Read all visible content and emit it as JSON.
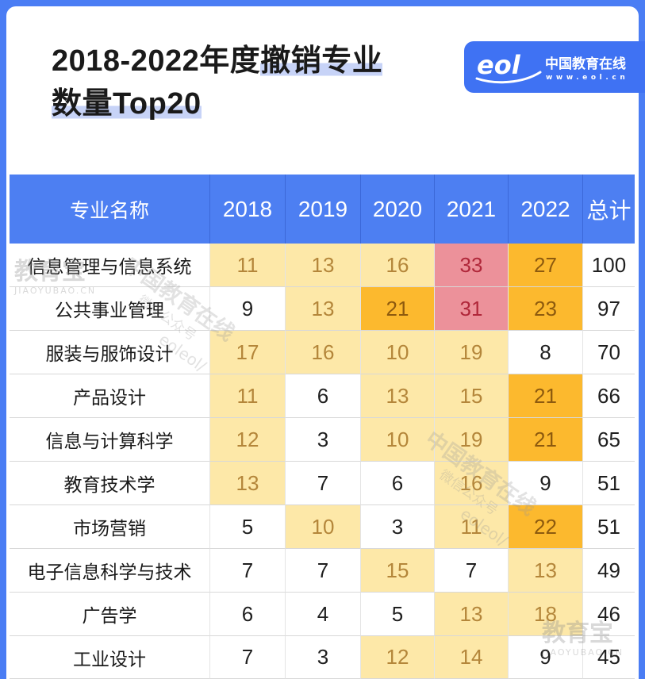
{
  "title": {
    "line1_plain": "2018-2022年度",
    "line1_highlight": "撤销专业",
    "line2_highlight": "数量Top20"
  },
  "logo": {
    "mark": "eol",
    "name": "中国教育在线",
    "url": "www.eol.cn"
  },
  "watermarks": {
    "jyb_cn": "教育宝",
    "jyb_en": "JIAOYUBAO.CN",
    "eol_cn": "中国教育在线",
    "eol_wx": "微信公众号",
    "eol_en": "eoleol/"
  },
  "colors": {
    "frame_blue": "#4a7df4",
    "header_bg": "#4d7ff2",
    "cell_light": "#fde8a8",
    "cell_mid": "#fcb92e",
    "cell_high": "#ec919a",
    "cell_plain": "#ffffff"
  },
  "chart_data": {
    "type": "table",
    "columns": [
      "专业名称",
      "2018",
      "2019",
      "2020",
      "2021",
      "2022",
      "总计"
    ],
    "rows": [
      {
        "name": "信息管理与信息系统",
        "values": [
          11,
          13,
          16,
          33,
          27
        ],
        "total": 100
      },
      {
        "name": "公共事业管理",
        "values": [
          9,
          13,
          21,
          31,
          23
        ],
        "total": 97
      },
      {
        "name": "服装与服饰设计",
        "values": [
          17,
          16,
          10,
          19,
          8
        ],
        "total": 70
      },
      {
        "name": "产品设计",
        "values": [
          11,
          6,
          13,
          15,
          21
        ],
        "total": 66
      },
      {
        "name": "信息与计算科学",
        "values": [
          12,
          3,
          10,
          19,
          21
        ],
        "total": 65
      },
      {
        "name": "教育技术学",
        "values": [
          13,
          7,
          6,
          16,
          9
        ],
        "total": 51
      },
      {
        "name": "市场营销",
        "values": [
          5,
          10,
          3,
          11,
          22
        ],
        "total": 51
      },
      {
        "name": "电子信息科学与技术",
        "values": [
          7,
          7,
          15,
          7,
          13
        ],
        "total": 49
      },
      {
        "name": "广告学",
        "values": [
          6,
          4,
          5,
          13,
          18
        ],
        "total": 46
      },
      {
        "name": "工业设计",
        "values": [
          7,
          3,
          12,
          14,
          9
        ],
        "total": 45
      }
    ]
  }
}
